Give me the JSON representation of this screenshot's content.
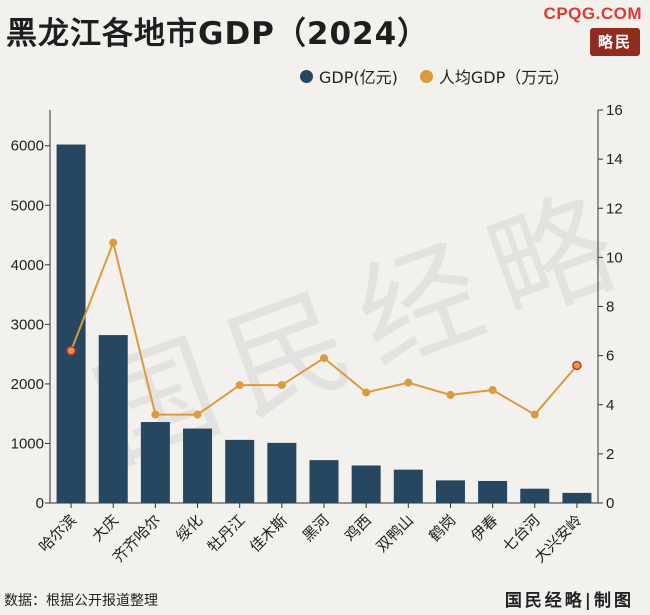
{
  "header": {
    "title": "黑龙江各地市GDP（2024）",
    "site": "CPQG.COM",
    "seal": "略民"
  },
  "legend": {
    "gdp": "GDP(亿元)",
    "per_capita": "人均GDP（万元）"
  },
  "colors": {
    "bar": "#26475f",
    "line": "#dd9a3c"
  },
  "chart_data": {
    "type": "bar",
    "categories": [
      "哈尔滨",
      "大庆",
      "齐齐哈尔",
      "绥化",
      "牡丹江",
      "佳木斯",
      "黑河",
      "鸡西",
      "双鸭山",
      "鹤岗",
      "伊春",
      "七台河",
      "大兴安岭"
    ],
    "series": [
      {
        "name": "GDP(亿元)",
        "type": "bar",
        "axis": "left",
        "values": [
          6020,
          2820,
          1360,
          1250,
          1060,
          1010,
          720,
          630,
          560,
          380,
          370,
          240,
          170
        ]
      },
      {
        "name": "人均GDP（万元）",
        "type": "line",
        "axis": "right",
        "values": [
          6.2,
          10.6,
          3.6,
          3.6,
          4.8,
          4.8,
          5.9,
          4.5,
          4.9,
          4.4,
          4.6,
          3.6,
          5.6
        ]
      }
    ],
    "y_left": {
      "ylim": [
        0,
        6600
      ],
      "ticks": [
        "0",
        "1000",
        "2000",
        "3000",
        "4000",
        "5000",
        "6000"
      ]
    },
    "y_right": {
      "ylim": [
        0,
        16
      ],
      "ticks": [
        "0",
        "2",
        "4",
        "6",
        "8",
        "10",
        "12",
        "14",
        "16"
      ]
    },
    "grid": false,
    "legend_position": "top-right"
  },
  "footer": {
    "source": "数据：根据公开报道整理",
    "brand": "国民经略|制图"
  },
  "watermark": "国民经略"
}
